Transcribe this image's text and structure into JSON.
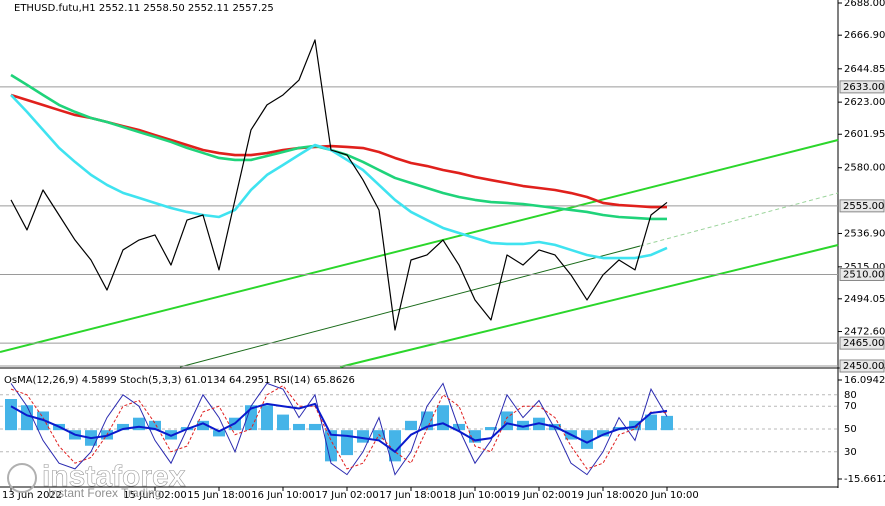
{
  "chart_data": [
    {
      "type": "line",
      "title": "ETHUSD.futu,H1  2552.11 2558.50 2552.11 2557.25",
      "categories": [
        "13 Jun 2022",
        null,
        null,
        null,
        null,
        null,
        null,
        null,
        null,
        "15 Jun 02:00",
        null,
        null,
        null,
        "15 Jun 18:00",
        null,
        null,
        null,
        "16 Jun 10:00",
        null,
        null,
        null,
        "17 Jun 02:00",
        null,
        null,
        null,
        "17 Jun 18:00",
        null,
        null,
        null,
        "18 Jun 10:00",
        null,
        null,
        null,
        "19 Jun 02:00",
        null,
        null,
        null,
        "19 Jun 18:00",
        null,
        null,
        null,
        "20 Jun 10:00"
      ],
      "series": [
        {
          "color": "#000000",
          "values": [
            2558.9,
            2539.2,
            2565.4,
            2549.0,
            2532.6,
            2519.5,
            2499.8,
            2526.1,
            2532.6,
            2535.9,
            2516.2,
            2545.7,
            2549.0,
            2513.0,
            2558.9,
            2604.8,
            2621.2,
            2627.7,
            2637.5,
            2663.8,
            2591.6,
            2588.4,
            2572.0,
            2552.3,
            2473.6,
            2519.5,
            2522.8,
            2532.6,
            2516.2,
            2493.3,
            2480.2,
            2522.8,
            2516.2,
            2526.1,
            2522.8,
            2509.7,
            2493.3,
            2509.7,
            2519.5,
            2513.0,
            2549.0,
            2557.25
          ]
        },
        {
          "color": "#e0201c",
          "values": [
            2627.7,
            2624.4,
            2621.1,
            2617.8,
            2614.6,
            2612.6,
            2610.0,
            2607.3,
            2604.7,
            2601.4,
            2598.2,
            2594.9,
            2591.6,
            2589.6,
            2588.3,
            2588.3,
            2589.6,
            2591.6,
            2592.9,
            2593.6,
            2594.2,
            2593.6,
            2592.9,
            2590.3,
            2586.4,
            2583.1,
            2581.1,
            2578.5,
            2576.5,
            2573.9,
            2571.9,
            2570.0,
            2568.0,
            2566.7,
            2565.4,
            2563.4,
            2560.8,
            2556.9,
            2555.5,
            2554.9,
            2554.2,
            2554.2
          ]
        },
        {
          "color": "#1fd37a",
          "values": [
            2640.8,
            2634.3,
            2627.7,
            2621.2,
            2616.6,
            2612.6,
            2610.0,
            2606.7,
            2603.4,
            2600.2,
            2596.9,
            2593.0,
            2589.7,
            2586.4,
            2585.1,
            2585.1,
            2587.7,
            2590.3,
            2593.0,
            2594.3,
            2591.6,
            2588.4,
            2583.8,
            2578.5,
            2573.3,
            2570.0,
            2566.7,
            2563.4,
            2560.8,
            2558.9,
            2557.5,
            2556.9,
            2556.2,
            2554.9,
            2553.6,
            2552.3,
            2551.0,
            2549.0,
            2547.7,
            2547.1,
            2546.4,
            2546.4
          ]
        },
        {
          "color": "#3fe3f0",
          "values": [
            2627.7,
            2616.6,
            2604.8,
            2593.0,
            2583.8,
            2575.3,
            2568.7,
            2563.5,
            2560.2,
            2556.9,
            2553.6,
            2551.0,
            2549.0,
            2547.7,
            2552.3,
            2565.4,
            2575.3,
            2581.8,
            2588.4,
            2594.9,
            2591.6,
            2585.1,
            2578.5,
            2568.7,
            2558.9,
            2551.0,
            2545.7,
            2540.5,
            2537.2,
            2533.9,
            2530.7,
            2530.0,
            2530.0,
            2531.3,
            2529.4,
            2526.1,
            2522.8,
            2520.8,
            2520.8,
            2520.8,
            2522.8,
            2527.4
          ]
        }
      ],
      "ylim": [
        2450,
        2688
      ],
      "yticks": [
        {
          "value": 2688,
          "label": "2688.00"
        },
        {
          "value": 2666.9,
          "label": "2666.90"
        },
        {
          "value": 2644.85,
          "label": "2644.85"
        },
        {
          "value": 2623,
          "label": "2623.00"
        },
        {
          "value": 2601.95,
          "label": "2601.95"
        },
        {
          "value": 2580,
          "label": "2580.00"
        },
        {
          "value": 2536.9,
          "label": "2536.90"
        },
        {
          "value": 2515,
          "label": "2515.00"
        },
        {
          "value": 2494.05,
          "label": "2494.05"
        },
        {
          "value": 2472.6,
          "label": "2472.60"
        }
      ],
      "levels": [
        {
          "value": 2633,
          "label": "2633.00"
        },
        {
          "value": 2555,
          "label": "2555.00"
        },
        {
          "value": 2510,
          "label": "2510.00"
        },
        {
          "value": 2465,
          "label": "2465.00"
        },
        {
          "value": 2450,
          "label": "2450.00"
        }
      ]
    },
    {
      "type": "bar",
      "title": "OsMA(12,26,9) 4.5899  Stoch(5,3,3) 61.0134 64.2951  RSI(14) 65.8626",
      "color": "#45b4e8",
      "values": [
        10,
        8,
        6,
        2,
        -3,
        -5,
        -3,
        2,
        4,
        3,
        -3,
        1,
        3,
        -2,
        4,
        8,
        8,
        5,
        2,
        2,
        -10,
        -8,
        -4,
        -3,
        -10,
        3,
        6,
        8,
        2,
        -4,
        1,
        6,
        3,
        4,
        2,
        -3,
        -6,
        -2,
        1,
        3,
        5,
        4.5899
      ],
      "ylim": [
        -15.6612,
        16.0942
      ],
      "yticks": [
        {
          "value": 16.0942,
          "label": "16.0942"
        },
        {
          "value": -15.6612,
          "label": "-15.6612"
        }
      ],
      "y2lim": [
        0,
        100
      ],
      "y2ticks": [
        80,
        70,
        50,
        30
      ],
      "series": [
        {
          "color": "#2a2ab0",
          "axis": "y2",
          "values": [
            90,
            70,
            40,
            20,
            15,
            30,
            60,
            80,
            70,
            40,
            20,
            50,
            80,
            60,
            30,
            70,
            90,
            85,
            60,
            80,
            20,
            10,
            30,
            60,
            10,
            30,
            70,
            90,
            50,
            20,
            40,
            80,
            60,
            75,
            50,
            20,
            10,
            30,
            60,
            40,
            85,
            61.0134
          ]
        },
        {
          "color": "#e02020",
          "axis": "y2",
          "values": [
            85,
            80,
            60,
            35,
            20,
            25,
            45,
            70,
            75,
            55,
            30,
            35,
            65,
            70,
            45,
            50,
            80,
            88,
            70,
            70,
            40,
            15,
            20,
            45,
            30,
            20,
            50,
            80,
            70,
            35,
            30,
            60,
            70,
            70,
            60,
            35,
            15,
            20,
            45,
            50,
            65,
            64.2951
          ]
        },
        {
          "color": "#0a1acc",
          "axis": "y2",
          "values": [
            70,
            62,
            58,
            52,
            45,
            42,
            44,
            50,
            52,
            50,
            44,
            50,
            55,
            48,
            55,
            68,
            72,
            70,
            68,
            72,
            45,
            44,
            42,
            40,
            30,
            45,
            52,
            55,
            48,
            40,
            42,
            55,
            52,
            55,
            52,
            45,
            38,
            45,
            50,
            52,
            64,
            65.8626
          ]
        }
      ]
    }
  ],
  "watermark": {
    "brand": "instaforex",
    "tagline": "Instant Forex Trading"
  }
}
